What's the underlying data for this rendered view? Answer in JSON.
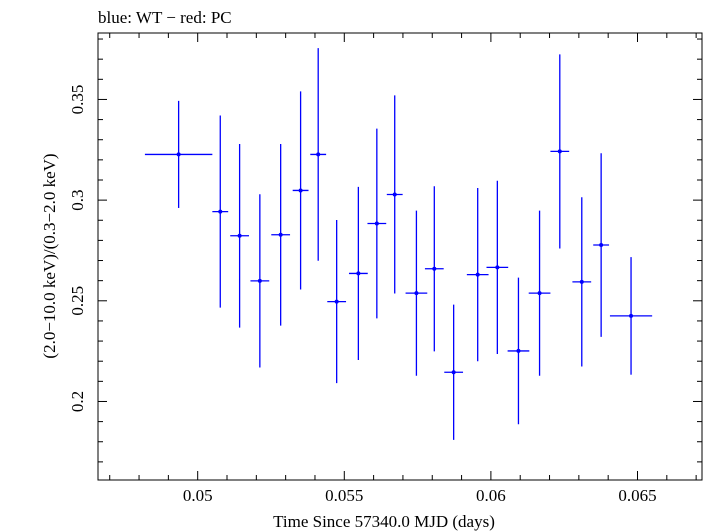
{
  "chart_data": {
    "type": "scatter",
    "title": "blue: WT − red: PC",
    "xlabel": "Time Since 57340.0 MJD (days)",
    "ylabel": "(2.0−10.0 keV)/(0.3−2.0 keV)",
    "xlim": [
      0.0466,
      0.0672
    ],
    "ylim": [
      0.161,
      0.383
    ],
    "xticks": [
      0.05,
      0.055,
      0.06,
      0.065
    ],
    "xtick_labels": [
      "0.05",
      "0.055",
      "0.06",
      "0.065"
    ],
    "yticks": [
      0.2,
      0.25,
      0.3,
      0.35
    ],
    "ytick_labels": [
      "0.2",
      "0.25",
      "0.3",
      "0.35"
    ],
    "grid": false,
    "legend": "none",
    "series": [
      {
        "color": "#0000ff",
        "points": [
          {
            "x": 0.04935,
            "y": 0.3227,
            "xerr": 0.00115,
            "yerr_low": 0.0266,
            "yerr_high": 0.0266
          },
          {
            "x": 0.05077,
            "y": 0.2943,
            "xerr": 0.00027,
            "yerr_low": 0.0477,
            "yerr_high": 0.0477
          },
          {
            "x": 0.05143,
            "y": 0.2823,
            "xerr": 0.00032,
            "yerr_low": 0.0456,
            "yerr_high": 0.0456
          },
          {
            "x": 0.05212,
            "y": 0.2599,
            "xerr": 0.00032,
            "yerr_low": 0.043,
            "yerr_high": 0.043
          },
          {
            "x": 0.05283,
            "y": 0.2828,
            "xerr": 0.00032,
            "yerr_low": 0.0451,
            "yerr_high": 0.0451
          },
          {
            "x": 0.05351,
            "y": 0.3048,
            "xerr": 0.00027,
            "yerr_low": 0.0492,
            "yerr_high": 0.0492
          },
          {
            "x": 0.05411,
            "y": 0.3227,
            "xerr": 0.00027,
            "yerr_low": 0.0528,
            "yerr_high": 0.0528
          },
          {
            "x": 0.05474,
            "y": 0.2496,
            "xerr": 0.00032,
            "yerr_low": 0.0405,
            "yerr_high": 0.0405
          },
          {
            "x": 0.05548,
            "y": 0.2636,
            "xerr": 0.00032,
            "yerr_low": 0.043,
            "yerr_high": 0.043
          },
          {
            "x": 0.05611,
            "y": 0.2884,
            "xerr": 0.00032,
            "yerr_low": 0.0471,
            "yerr_high": 0.0471
          },
          {
            "x": 0.05672,
            "y": 0.3028,
            "xerr": 0.00027,
            "yerr_low": 0.0492,
            "yerr_high": 0.0492
          },
          {
            "x": 0.05746,
            "y": 0.2538,
            "xerr": 0.00037,
            "yerr_low": 0.041,
            "yerr_high": 0.041
          },
          {
            "x": 0.05807,
            "y": 0.2659,
            "xerr": 0.00032,
            "yerr_low": 0.041,
            "yerr_high": 0.041
          },
          {
            "x": 0.05873,
            "y": 0.2145,
            "xerr": 0.00032,
            "yerr_low": 0.0336,
            "yerr_high": 0.0336
          },
          {
            "x": 0.05955,
            "y": 0.263,
            "xerr": 0.00037,
            "yerr_low": 0.043,
            "yerr_high": 0.043
          },
          {
            "x": 0.06022,
            "y": 0.2666,
            "xerr": 0.00037,
            "yerr_low": 0.043,
            "yerr_high": 0.043
          },
          {
            "x": 0.06094,
            "y": 0.2251,
            "xerr": 0.00037,
            "yerr_low": 0.0364,
            "yerr_high": 0.0364
          },
          {
            "x": 0.06166,
            "y": 0.2538,
            "xerr": 0.00037,
            "yerr_low": 0.041,
            "yerr_high": 0.041
          },
          {
            "x": 0.06235,
            "y": 0.3242,
            "xerr": 0.00032,
            "yerr_low": 0.0482,
            "yerr_high": 0.0482
          },
          {
            "x": 0.0631,
            "y": 0.2594,
            "xerr": 0.00032,
            "yerr_low": 0.042,
            "yerr_high": 0.042
          },
          {
            "x": 0.06376,
            "y": 0.2777,
            "xerr": 0.00027,
            "yerr_low": 0.0456,
            "yerr_high": 0.0456
          },
          {
            "x": 0.06478,
            "y": 0.2425,
            "xerr": 0.00072,
            "yerr_low": 0.0292,
            "yerr_high": 0.0292
          }
        ]
      }
    ]
  }
}
